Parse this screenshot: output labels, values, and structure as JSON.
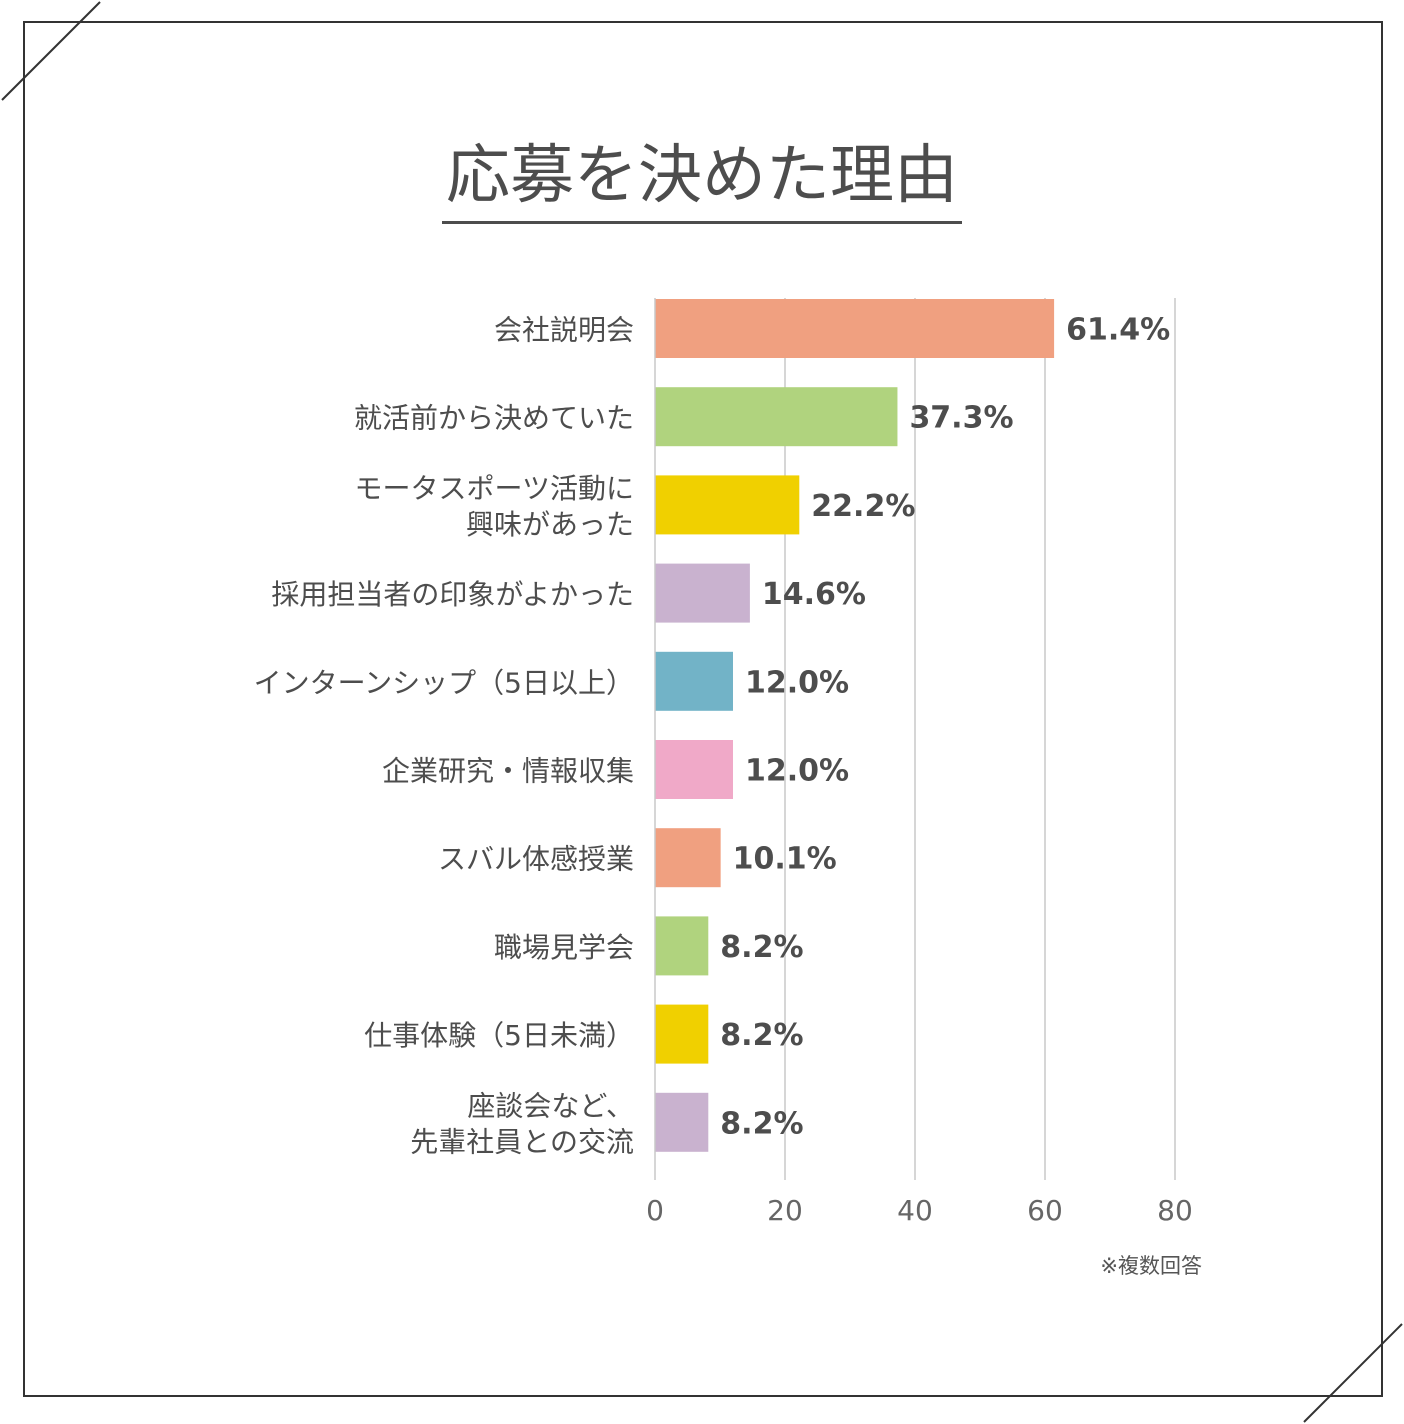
{
  "chart_data": {
    "type": "bar",
    "orientation": "horizontal",
    "title": "応募を決めた理由",
    "note": "※複数回答",
    "categories": [
      [
        "会社説明会"
      ],
      [
        "就活前から決めていた"
      ],
      [
        "モータスポーツ活動に",
        "興味があった"
      ],
      [
        "採用担当者の印象がよかった"
      ],
      [
        "インターンシップ（5日以上）"
      ],
      [
        "企業研究・情報収集"
      ],
      [
        "スバル体感授業"
      ],
      [
        "職場見学会"
      ],
      [
        "仕事体験（5日未満）"
      ],
      [
        "座談会など、",
        "先輩社員との交流"
      ]
    ],
    "values": [
      61.4,
      37.3,
      22.2,
      14.6,
      12.0,
      12.0,
      10.1,
      8.2,
      8.2,
      8.2
    ],
    "value_labels": [
      "61.4%",
      "37.3%",
      "22.2%",
      "14.6%",
      "12.0%",
      "12.0%",
      "10.1%",
      "8.2%",
      "8.2%",
      "8.2%"
    ],
    "colors": [
      "#f0a080",
      "#b0d37e",
      "#f0d000",
      "#c9b2cf",
      "#72b3c7",
      "#f0a9c8",
      "#f0a080",
      "#b0d37e",
      "#f0d000",
      "#c9b2cf"
    ],
    "xlim": [
      0,
      80
    ],
    "xticks": [
      0,
      20,
      40,
      60,
      80
    ],
    "xtick_labels": [
      "0",
      "20",
      "40",
      "60",
      "80"
    ],
    "grid": true
  }
}
